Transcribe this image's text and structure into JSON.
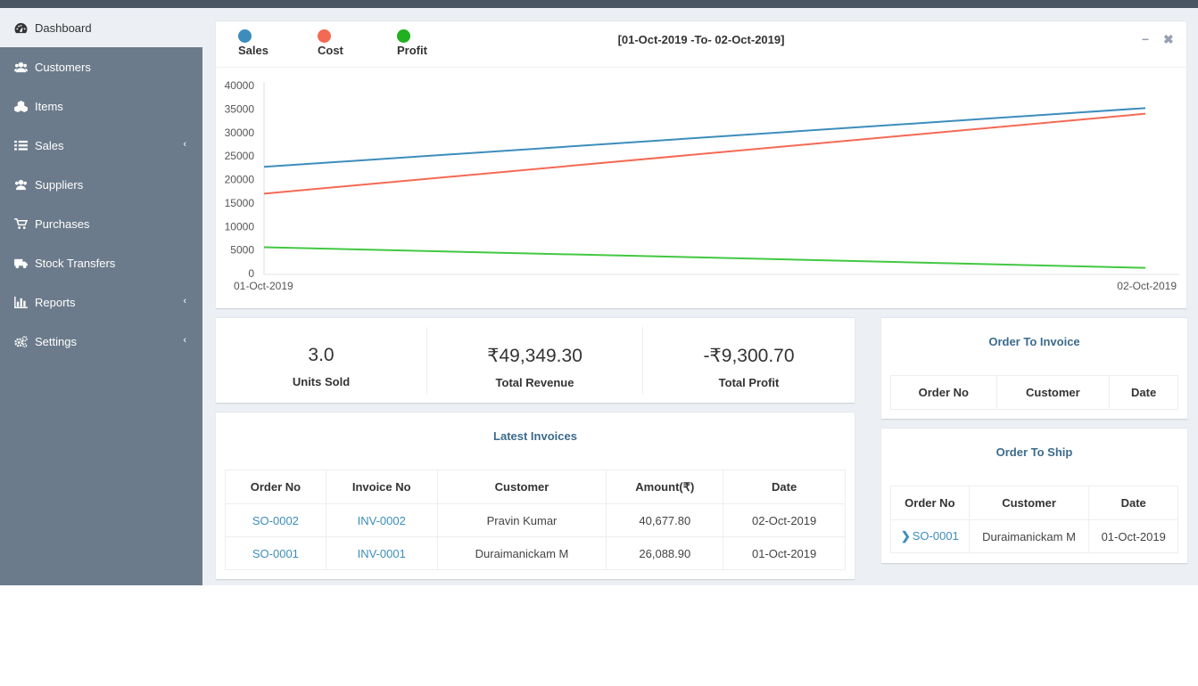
{
  "sidebar": {
    "items": [
      {
        "label": "Dashboard",
        "icon": "dashboard-icon",
        "active": true
      },
      {
        "label": "Customers",
        "icon": "users-icon"
      },
      {
        "label": "Items",
        "icon": "cubes-icon"
      },
      {
        "label": "Sales",
        "icon": "list-icon",
        "chevron": "‹"
      },
      {
        "label": "Suppliers",
        "icon": "users-icon"
      },
      {
        "label": "Purchases",
        "icon": "cart-icon"
      },
      {
        "label": "Stock Transfers",
        "icon": "truck-icon"
      },
      {
        "label": "Reports",
        "icon": "bar-chart-icon",
        "chevron": "‹"
      },
      {
        "label": "Settings",
        "icon": "cogs-icon",
        "chevron": "‹"
      }
    ]
  },
  "chart": {
    "range": "[01-Oct-2019 -To- 02-Oct-2019]",
    "minimize": "−",
    "close": "✖"
  },
  "chart_data": {
    "type": "line",
    "x": [
      "01-Oct-2019",
      "02-Oct-2019"
    ],
    "series": [
      {
        "name": "Sales",
        "color": "#3c8dbc",
        "values": [
          22700,
          35200
        ]
      },
      {
        "name": "Cost",
        "color": "#f56954",
        "values": [
          17000,
          34000
        ]
      },
      {
        "name": "Profit",
        "color": "#00a65a",
        "values": [
          5600,
          1200
        ]
      }
    ],
    "legend_colors": [
      "#3c8dbc",
      "#f56954",
      "#20b020"
    ],
    "line_colors": [
      "#3c8dbc",
      "#f56954",
      "#42c842"
    ],
    "yticks": [
      0,
      5000,
      10000,
      15000,
      20000,
      25000,
      30000,
      35000,
      40000
    ],
    "ylim": [
      0,
      40000
    ],
    "grid": false,
    "legend": "top-left"
  },
  "stats": [
    {
      "value": "3.0",
      "label": "Units Sold"
    },
    {
      "value": "₹49,349.30",
      "label": "Total Revenue"
    },
    {
      "value": "-₹9,300.70",
      "label": "Total Profit"
    }
  ],
  "latest_invoices": {
    "title": "Latest Invoices",
    "columns": [
      "Order No",
      "Invoice No",
      "Customer",
      "Amount(₹)",
      "Date"
    ],
    "rows": [
      [
        "SO-0002",
        "INV-0002",
        "Pravin Kumar",
        "40,677.80",
        "02-Oct-2019"
      ],
      [
        "SO-0001",
        "INV-0001",
        "Duraimanickam M",
        "26,088.90",
        "01-Oct-2019"
      ]
    ]
  },
  "order_to_invoice": {
    "title": "Order To Invoice",
    "columns": [
      "Order No",
      "Customer",
      "Date"
    ]
  },
  "order_to_ship": {
    "title": "Order To Ship",
    "columns": [
      "Order No",
      "Customer",
      "Date"
    ],
    "rows": [
      [
        "SO-0001",
        "Duraimanickam M",
        "01-Oct-2019"
      ]
    ]
  }
}
